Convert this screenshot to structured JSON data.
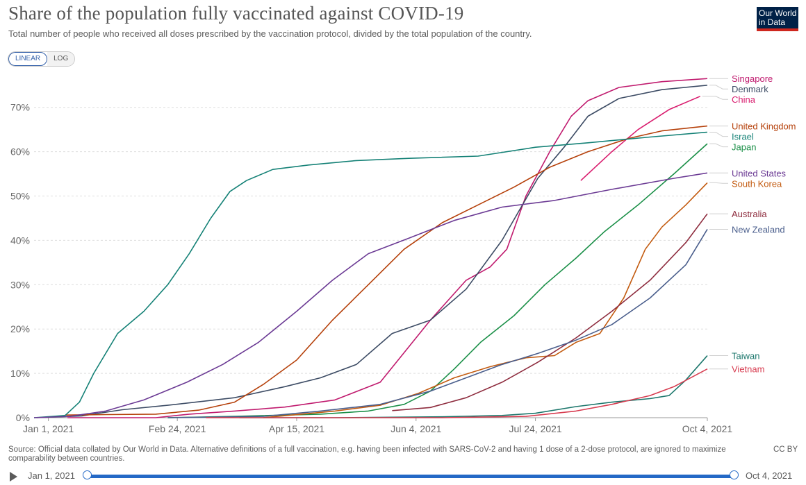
{
  "header": {
    "title": "Share of the population fully vaccinated against COVID-19",
    "subtitle": "Total number of people who received all doses prescribed by the vaccination protocol, divided by the total population of the country.",
    "logo_line1": "Our World",
    "logo_line2": "in Data",
    "logo_color": "#002147",
    "logo_accent": "#ce261e"
  },
  "controls": {
    "linear_label": "LINEAR",
    "log_label": "LOG",
    "active": "linear"
  },
  "footer": {
    "source": "Source: Official data collated by Our World in Data. Alternative definitions of a full vaccination, e.g. having been infected with SARS-CoV-2 and having 1 dose of a 2-dose protocol, are ignored to maximize comparability between countries.",
    "license": "CC BY"
  },
  "timeline": {
    "start_label": "Jan 1, 2021",
    "end_label": "Oct 4, 2021",
    "accent": "#2469c6"
  },
  "chart_data": {
    "type": "line",
    "title": "Share of the population fully vaccinated against COVID-19",
    "subtitle": "Total number of people who received all doses prescribed by the vaccination protocol, divided by the total population of the country.",
    "xlabel": "",
    "ylabel": "",
    "x_ticks": [
      "Jan 1, 2021",
      "Feb 24, 2021",
      "Apr 15, 2021",
      "Jun 4, 2021",
      "Jul 24, 2021",
      "Oct 4, 2021"
    ],
    "y_ticks": [
      "0%",
      "10%",
      "20%",
      "30%",
      "40%",
      "50%",
      "60%",
      "70%"
    ],
    "xlim": [
      "2020-12-26",
      "2021-10-04"
    ],
    "ylim": [
      0,
      77
    ],
    "grid": "horizontal dashed",
    "legend": "right, labels at line ends",
    "series": [
      {
        "name": "Singapore",
        "color": "#c01a6e",
        "points": [
          [
            "2021-01-09",
            0
          ],
          [
            "2021-02-15",
            0
          ],
          [
            "2021-03-01",
            0.8
          ],
          [
            "2021-03-20",
            1.5
          ],
          [
            "2021-04-10",
            2.4
          ],
          [
            "2021-05-01",
            4
          ],
          [
            "2021-05-20",
            8
          ],
          [
            "2021-06-10",
            22
          ],
          [
            "2021-06-25",
            31
          ],
          [
            "2021-07-05",
            34
          ],
          [
            "2021-07-12",
            38
          ],
          [
            "2021-07-20",
            50
          ],
          [
            "2021-07-30",
            60
          ],
          [
            "2021-08-08",
            68
          ],
          [
            "2021-08-15",
            71.5
          ],
          [
            "2021-08-28",
            74.5
          ],
          [
            "2021-09-15",
            75.8
          ],
          [
            "2021-10-04",
            76.5
          ]
        ]
      },
      {
        "name": "Denmark",
        "color": "#3c4b64",
        "points": [
          [
            "2020-12-27",
            0
          ],
          [
            "2021-01-15",
            0.4
          ],
          [
            "2021-02-01",
            1.8
          ],
          [
            "2021-02-20",
            2.8
          ],
          [
            "2021-03-20",
            4.5
          ],
          [
            "2021-04-10",
            7
          ],
          [
            "2021-04-25",
            9
          ],
          [
            "2021-05-10",
            12
          ],
          [
            "2021-05-25",
            19
          ],
          [
            "2021-06-10",
            22
          ],
          [
            "2021-06-25",
            29
          ],
          [
            "2021-07-10",
            40
          ],
          [
            "2021-07-25",
            54
          ],
          [
            "2021-08-05",
            61
          ],
          [
            "2021-08-15",
            68
          ],
          [
            "2021-08-28",
            72
          ],
          [
            "2021-09-15",
            74
          ],
          [
            "2021-10-04",
            75
          ]
        ]
      },
      {
        "name": "China",
        "color": "#d91c6e",
        "points": [
          [
            "2021-08-12",
            53.5
          ],
          [
            "2021-08-25",
            60
          ],
          [
            "2021-09-05",
            65
          ],
          [
            "2021-09-18",
            69.5
          ],
          [
            "2021-10-01",
            72.5
          ]
        ]
      },
      {
        "name": "United Kingdom",
        "color": "#b5400a",
        "points": [
          [
            "2021-01-08",
            0.6
          ],
          [
            "2021-01-25",
            0.7
          ],
          [
            "2021-02-15",
            0.8
          ],
          [
            "2021-03-05",
            1.7
          ],
          [
            "2021-03-20",
            3.5
          ],
          [
            "2021-04-01",
            7.5
          ],
          [
            "2021-04-15",
            13
          ],
          [
            "2021-04-30",
            22
          ],
          [
            "2021-05-15",
            30
          ],
          [
            "2021-05-30",
            38
          ],
          [
            "2021-06-15",
            44
          ],
          [
            "2021-06-30",
            48
          ],
          [
            "2021-07-15",
            52
          ],
          [
            "2021-07-30",
            56.5
          ],
          [
            "2021-08-15",
            60
          ],
          [
            "2021-09-01",
            63
          ],
          [
            "2021-09-15",
            64.7
          ],
          [
            "2021-10-04",
            65.8
          ]
        ]
      },
      {
        "name": "Israel",
        "color": "#148176",
        "points": [
          [
            "2020-12-26",
            0
          ],
          [
            "2021-01-08",
            0.5
          ],
          [
            "2021-01-14",
            3.5
          ],
          [
            "2021-01-20",
            10
          ],
          [
            "2021-01-30",
            19
          ],
          [
            "2021-02-10",
            24
          ],
          [
            "2021-02-20",
            30
          ],
          [
            "2021-03-01",
            37
          ],
          [
            "2021-03-10",
            45
          ],
          [
            "2021-03-18",
            51
          ],
          [
            "2021-03-25",
            53.5
          ],
          [
            "2021-04-05",
            56
          ],
          [
            "2021-04-20",
            57
          ],
          [
            "2021-05-10",
            58
          ],
          [
            "2021-06-01",
            58.5
          ],
          [
            "2021-06-30",
            59
          ],
          [
            "2021-07-24",
            61
          ],
          [
            "2021-08-15",
            62
          ],
          [
            "2021-09-10",
            63.3
          ],
          [
            "2021-10-04",
            64.4
          ]
        ]
      },
      {
        "name": "Japan",
        "color": "#1a8f47",
        "points": [
          [
            "2021-02-20",
            0
          ],
          [
            "2021-03-20",
            0.3
          ],
          [
            "2021-04-25",
            0.8
          ],
          [
            "2021-05-15",
            1.5
          ],
          [
            "2021-05-30",
            3
          ],
          [
            "2021-06-10",
            6
          ],
          [
            "2021-06-20",
            11
          ],
          [
            "2021-07-01",
            17
          ],
          [
            "2021-07-15",
            23
          ],
          [
            "2021-07-28",
            30
          ],
          [
            "2021-08-10",
            36
          ],
          [
            "2021-08-22",
            42
          ],
          [
            "2021-09-05",
            48
          ],
          [
            "2021-09-20",
            55
          ],
          [
            "2021-10-04",
            61.8
          ]
        ]
      },
      {
        "name": "United States",
        "color": "#6b3a94",
        "points": [
          [
            "2020-12-26",
            0
          ],
          [
            "2021-01-10",
            0.3
          ],
          [
            "2021-01-25",
            1.5
          ],
          [
            "2021-02-10",
            4
          ],
          [
            "2021-02-28",
            8
          ],
          [
            "2021-03-15",
            12
          ],
          [
            "2021-03-30",
            17
          ],
          [
            "2021-04-15",
            24
          ],
          [
            "2021-04-30",
            31
          ],
          [
            "2021-05-15",
            37
          ],
          [
            "2021-06-01",
            40.5
          ],
          [
            "2021-06-20",
            44.5
          ],
          [
            "2021-07-10",
            47.5
          ],
          [
            "2021-08-01",
            49
          ],
          [
            "2021-08-25",
            51.5
          ],
          [
            "2021-09-20",
            54
          ],
          [
            "2021-10-04",
            55.2
          ]
        ]
      },
      {
        "name": "South Korea",
        "color": "#c35b10",
        "points": [
          [
            "2021-04-01",
            0
          ],
          [
            "2021-05-01",
            1.5
          ],
          [
            "2021-05-20",
            2.8
          ],
          [
            "2021-06-05",
            5.5
          ],
          [
            "2021-06-20",
            9
          ],
          [
            "2021-07-05",
            11.5
          ],
          [
            "2021-07-20",
            13.5
          ],
          [
            "2021-08-01",
            14
          ],
          [
            "2021-08-10",
            17
          ],
          [
            "2021-08-20",
            19
          ],
          [
            "2021-08-30",
            27
          ],
          [
            "2021-09-08",
            38
          ],
          [
            "2021-09-15",
            43
          ],
          [
            "2021-09-25",
            48
          ],
          [
            "2021-10-04",
            53
          ]
        ]
      },
      {
        "name": "Australia",
        "color": "#8e2c3e",
        "points": [
          [
            "2021-05-25",
            1.6
          ],
          [
            "2021-06-10",
            2.3
          ],
          [
            "2021-06-25",
            4.5
          ],
          [
            "2021-07-10",
            8
          ],
          [
            "2021-07-25",
            12.5
          ],
          [
            "2021-08-10",
            18
          ],
          [
            "2021-08-25",
            24
          ],
          [
            "2021-09-10",
            31
          ],
          [
            "2021-09-25",
            39.5
          ],
          [
            "2021-10-04",
            46
          ]
        ]
      },
      {
        "name": "New Zealand",
        "color": "#4a5e8c",
        "points": [
          [
            "2021-02-20",
            0
          ],
          [
            "2021-04-01",
            0.3
          ],
          [
            "2021-04-25",
            1.5
          ],
          [
            "2021-05-20",
            3
          ],
          [
            "2021-06-10",
            6
          ],
          [
            "2021-06-25",
            9
          ],
          [
            "2021-07-10",
            12
          ],
          [
            "2021-07-25",
            14.5
          ],
          [
            "2021-08-10",
            17.5
          ],
          [
            "2021-08-25",
            21
          ],
          [
            "2021-09-10",
            27
          ],
          [
            "2021-09-25",
            34.5
          ],
          [
            "2021-10-04",
            42.5
          ]
        ]
      },
      {
        "name": "Taiwan",
        "color": "#1b766b",
        "points": [
          [
            "2021-03-22",
            0
          ],
          [
            "2021-05-01",
            0
          ],
          [
            "2021-06-15",
            0.2
          ],
          [
            "2021-07-10",
            0.5
          ],
          [
            "2021-07-24",
            1
          ],
          [
            "2021-08-10",
            2.5
          ],
          [
            "2021-08-25",
            3.5
          ],
          [
            "2021-09-10",
            4.3
          ],
          [
            "2021-09-18",
            5
          ],
          [
            "2021-09-25",
            8.5
          ],
          [
            "2021-10-04",
            14
          ]
        ]
      },
      {
        "name": "Vietnam",
        "color": "#d73c50",
        "points": [
          [
            "2021-03-08",
            0
          ],
          [
            "2021-06-15",
            0
          ],
          [
            "2021-07-20",
            0.3
          ],
          [
            "2021-08-10",
            1.5
          ],
          [
            "2021-08-25",
            3
          ],
          [
            "2021-09-10",
            5
          ],
          [
            "2021-09-20",
            7
          ],
          [
            "2021-10-04",
            11
          ]
        ]
      }
    ]
  }
}
